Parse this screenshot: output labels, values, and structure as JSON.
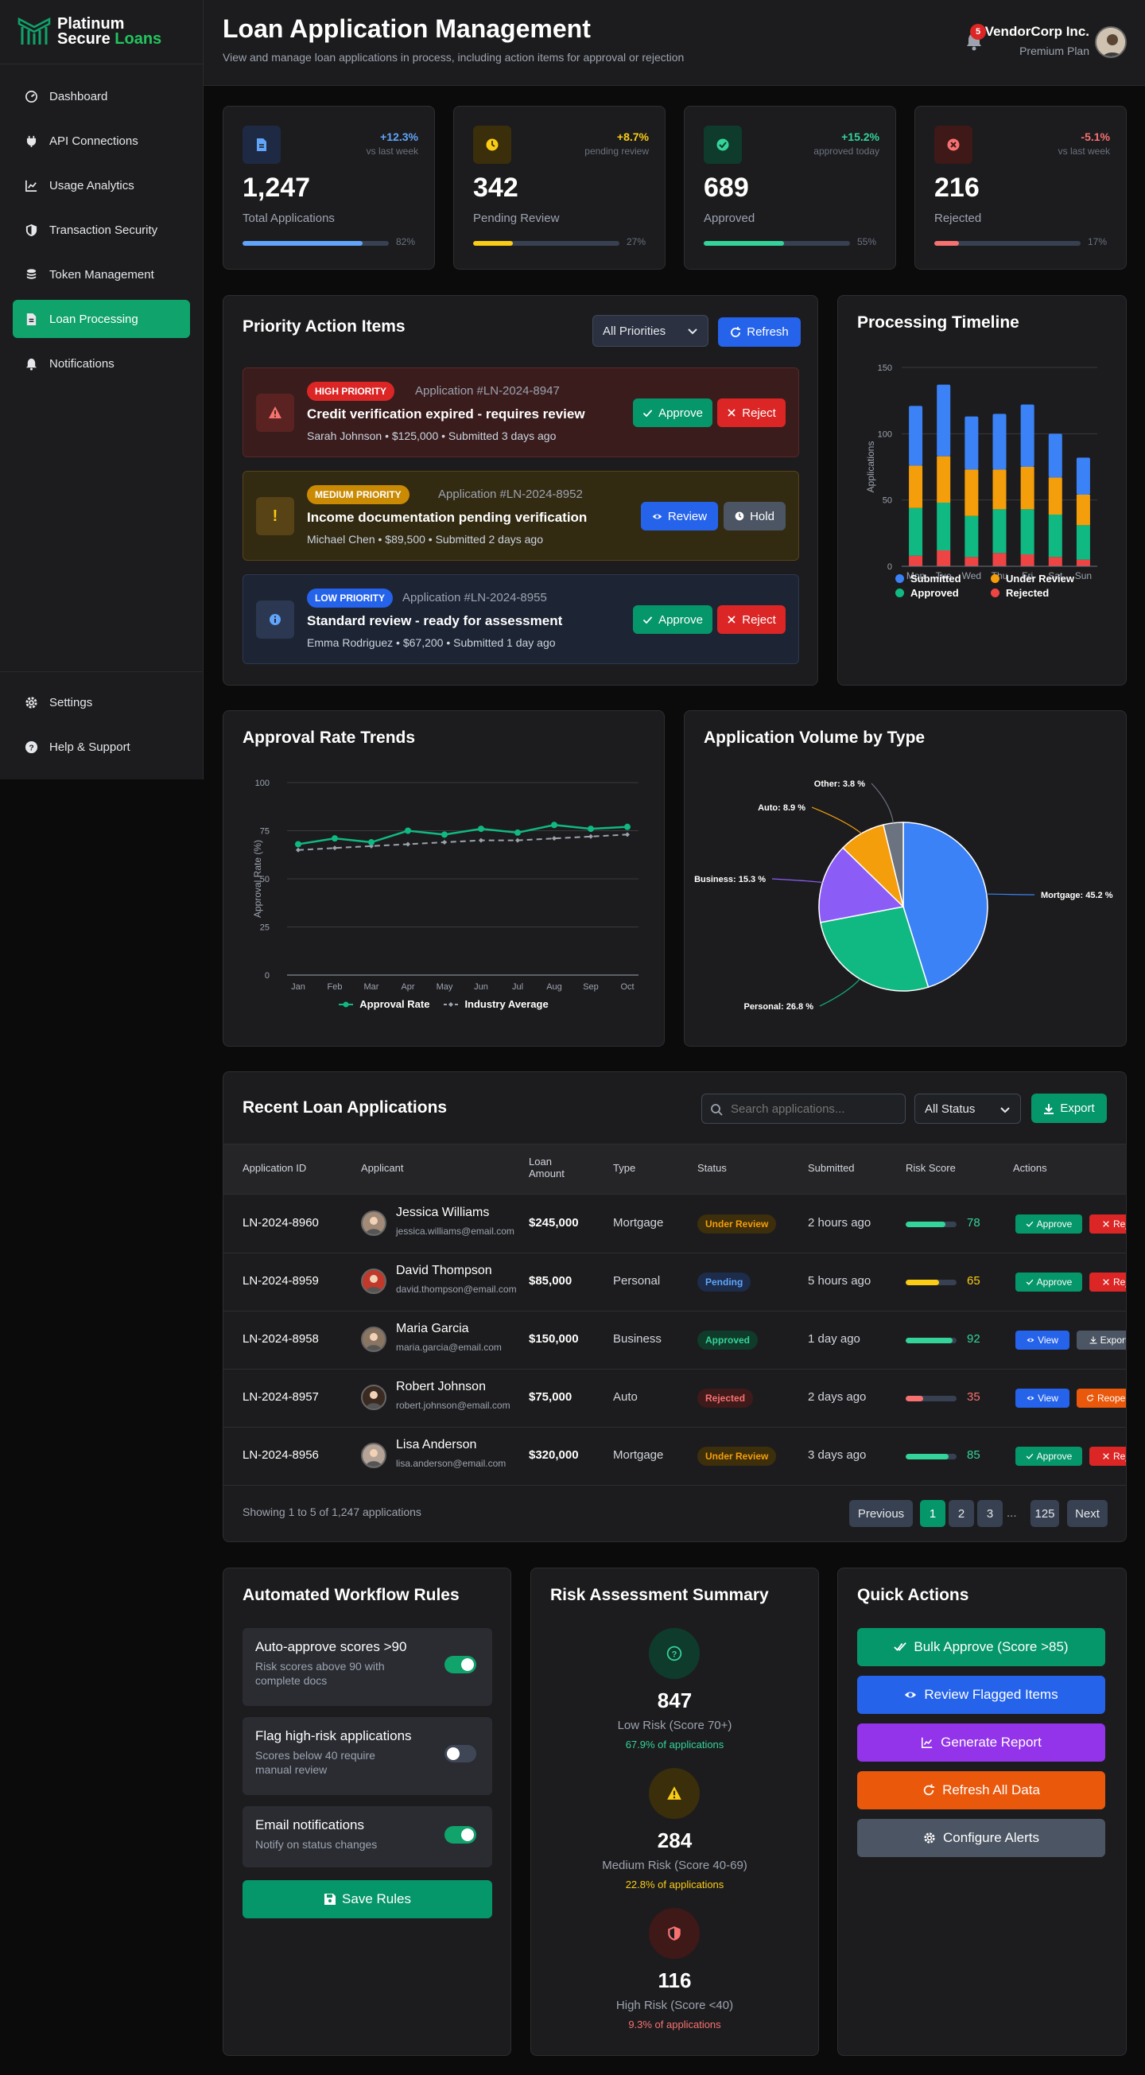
{
  "brand": {
    "line1": "Platinum",
    "line2a": "Secure",
    "line2b": "Loans"
  },
  "sidebar": {
    "items": [
      {
        "label": "Dashboard",
        "icon": "dashboard-icon"
      },
      {
        "label": "API Connections",
        "icon": "plug-icon"
      },
      {
        "label": "Usage Analytics",
        "icon": "chart-line-icon"
      },
      {
        "label": "Transaction Security",
        "icon": "shield-icon"
      },
      {
        "label": "Token Management",
        "icon": "coins-icon"
      },
      {
        "label": "Loan Processing",
        "icon": "file-icon",
        "active": true
      },
      {
        "label": "Notifications",
        "icon": "bell-icon"
      }
    ],
    "bottom": [
      {
        "label": "Settings",
        "icon": "gear-icon"
      },
      {
        "label": "Help & Support",
        "icon": "question-icon"
      }
    ]
  },
  "header": {
    "title": "Loan Application Management",
    "subtitle": "View and manage loan applications in process, including action items for approval or rejection",
    "notification_count": "5",
    "company": "VendorCorp Inc.",
    "plan": "Premium Plan"
  },
  "stats": [
    {
      "value": "1,247",
      "label": "Total Applications",
      "change": "+12.3%",
      "change_label": "vs last week",
      "progress": 82,
      "progress_text": "82%",
      "color": "#60a5fa",
      "icon": "file-icon"
    },
    {
      "value": "342",
      "label": "Pending Review",
      "change": "+8.7%",
      "change_label": "pending review",
      "progress": 27,
      "progress_text": "27%",
      "color": "#facc15",
      "icon": "clock-icon"
    },
    {
      "value": "689",
      "label": "Approved",
      "change": "+15.2%",
      "change_label": "approved today",
      "progress": 55,
      "progress_text": "55%",
      "color": "#34d399",
      "icon": "check-circle-icon"
    },
    {
      "value": "216",
      "label": "Rejected",
      "change": "-5.1%",
      "change_label": "vs last week",
      "progress": 17,
      "progress_text": "17%",
      "color": "#f87171",
      "icon": "x-circle-icon"
    }
  ],
  "priority": {
    "title": "Priority Action Items",
    "filter": "All Priorities",
    "refresh": "Refresh",
    "items": [
      {
        "badge": "HIGH PRIORITY",
        "app": "Application #LN-2024-8947",
        "title": "Credit verification expired - requires review",
        "meta": "Sarah Johnson • $125,000 • Submitted 3 days ago",
        "btn1": "Approve",
        "btn2": "Reject",
        "icon_glyph": "▲"
      },
      {
        "badge": "MEDIUM PRIORITY",
        "app": "Application #LN-2024-8952",
        "title": "Income documentation pending verification",
        "meta": "Michael Chen • $89,500 • Submitted 2 days ago",
        "btn1": "Review",
        "btn2": "Hold",
        "icon_glyph": "!"
      },
      {
        "badge": "LOW PRIORITY",
        "app": "Application #LN-2024-8955",
        "title": "Standard review - ready for assessment",
        "meta": "Emma Rodriguez • $67,200 • Submitted 1 day ago",
        "btn1": "Approve",
        "btn2": "Reject",
        "icon_glyph": "i"
      }
    ]
  },
  "chart_data": [
    {
      "type": "bar",
      "title": "Processing Timeline",
      "stacked": true,
      "categories": [
        "Mon",
        "Tue",
        "Wed",
        "Thu",
        "Fri",
        "Sat",
        "Sun"
      ],
      "ylabel": "Applications",
      "ylim": [
        0,
        150
      ],
      "yticks": [
        0,
        50,
        100,
        150
      ],
      "legend": "bottom",
      "series": [
        {
          "name": "Rejected",
          "color": "#ef4444",
          "values": [
            8,
            12,
            7,
            10,
            9,
            7,
            5
          ]
        },
        {
          "name": "Approved",
          "color": "#10b981",
          "values": [
            36,
            36,
            31,
            33,
            34,
            32,
            26
          ]
        },
        {
          "name": "Under Review",
          "color": "#f59e0b",
          "values": [
            32,
            35,
            35,
            30,
            32,
            28,
            23
          ]
        },
        {
          "name": "Submitted",
          "color": "#3b82f6",
          "values": [
            45,
            54,
            40,
            42,
            47,
            33,
            28
          ]
        }
      ]
    },
    {
      "type": "line",
      "title": "Approval Rate Trends",
      "categories": [
        "Jan",
        "Feb",
        "Mar",
        "Apr",
        "May",
        "Jun",
        "Jul",
        "Aug",
        "Sep",
        "Oct"
      ],
      "ylabel": "Approval Rate (%)",
      "ylim": [
        0,
        100
      ],
      "yticks": [
        0,
        25,
        50,
        75,
        100
      ],
      "legend": "bottom",
      "series": [
        {
          "name": "Approval Rate",
          "color": "#10b981",
          "values": [
            68,
            71,
            69,
            75,
            73,
            76,
            74,
            78,
            76,
            77
          ]
        },
        {
          "name": "Industry Average",
          "color": "#9ca3af",
          "dashed": true,
          "values": [
            65,
            66,
            67,
            68,
            69,
            70,
            70,
            71,
            72,
            73
          ]
        }
      ]
    },
    {
      "type": "pie",
      "title": "Application Volume by Type",
      "slices": [
        {
          "label": "Mortgage",
          "value": 45.2,
          "color": "#3b82f6"
        },
        {
          "label": "Personal",
          "value": 26.8,
          "color": "#10b981"
        },
        {
          "label": "Business",
          "value": 15.3,
          "color": "#8b5cf6"
        },
        {
          "label": "Auto",
          "value": 8.9,
          "color": "#f59e0b"
        },
        {
          "label": "Other",
          "value": 3.8,
          "color": "#6b7280"
        }
      ]
    }
  ],
  "table": {
    "title": "Recent Loan Applications",
    "search_placeholder": "Search applications...",
    "status_filter": "All Status",
    "export": "Export",
    "columns": [
      "Application ID",
      "Applicant",
      "Loan Amount",
      "Type",
      "Status",
      "Submitted",
      "Risk Score",
      "Actions"
    ],
    "rows": [
      {
        "id": "LN-2024-8960",
        "name": "Jessica Williams",
        "email": "jessica.williams@email.com",
        "amount": "$245,000",
        "type": "Mortgage",
        "status": "Under Review",
        "status_color": "#f59e0b",
        "status_bg": "#3d2e0c",
        "submitted": "2 hours ago",
        "risk": "78",
        "risk_color": "#34d399",
        "a1": "Approve",
        "a1c": "#059669",
        "a2": "Reject",
        "a2c": "#dc2626",
        "avatar": "#a18b78"
      },
      {
        "id": "LN-2024-8959",
        "name": "David Thompson",
        "email": "david.thompson@email.com",
        "amount": "$85,000",
        "type": "Personal",
        "status": "Pending",
        "status_color": "#60a5fa",
        "status_bg": "#1c2c4a",
        "submitted": "5 hours ago",
        "risk": "65",
        "risk_color": "#facc15",
        "a1": "Approve",
        "a1c": "#059669",
        "a2": "Reject",
        "a2c": "#dc2626",
        "avatar": "#c0392b"
      },
      {
        "id": "LN-2024-8958",
        "name": "Maria Garcia",
        "email": "maria.garcia@email.com",
        "amount": "$150,000",
        "type": "Business",
        "status": "Approved",
        "status_color": "#34d399",
        "status_bg": "#103a2a",
        "submitted": "1 day ago",
        "risk": "92",
        "risk_color": "#34d399",
        "a1": "View",
        "a1c": "#2563eb",
        "a2": "Export",
        "a2c": "#4b5563",
        "avatar": "#8a7462"
      },
      {
        "id": "LN-2024-8957",
        "name": "Robert Johnson",
        "email": "robert.johnson@email.com",
        "amount": "$75,000",
        "type": "Auto",
        "status": "Rejected",
        "status_color": "#f87171",
        "status_bg": "#3f1a1a",
        "submitted": "2 days ago",
        "risk": "35",
        "risk_color": "#f87171",
        "a1": "View",
        "a1c": "#2563eb",
        "a2": "Reopen",
        "a2c": "#ea580c",
        "avatar": "#3b2a22"
      },
      {
        "id": "LN-2024-8956",
        "name": "Lisa Anderson",
        "email": "lisa.anderson@email.com",
        "amount": "$320,000",
        "type": "Mortgage",
        "status": "Under Review",
        "status_color": "#f59e0b",
        "status_bg": "#3d2e0c",
        "submitted": "3 days ago",
        "risk": "85",
        "risk_color": "#34d399",
        "a1": "Approve",
        "a1c": "#059669",
        "a2": "Reject",
        "a2c": "#dc2626",
        "avatar": "#b5a397"
      }
    ],
    "footer": "Showing 1 to 5 of 1,247 applications",
    "pagination": {
      "prev": "Previous",
      "pages": [
        "1",
        "2",
        "3"
      ],
      "ellipsis": "...",
      "last": "125",
      "next": "Next"
    }
  },
  "workflow": {
    "title": "Automated Workflow Rules",
    "rules": [
      {
        "title": "Auto-approve scores >90",
        "desc": "Risk scores above 90 with complete docs",
        "on": true
      },
      {
        "title": "Flag high-risk applications",
        "desc": "Scores below 40 require manual review",
        "on": false
      },
      {
        "title": "Email notifications",
        "desc": "Notify on status changes",
        "on": true
      }
    ],
    "save": "Save Rules"
  },
  "risk": {
    "title": "Risk Assessment Summary",
    "items": [
      {
        "value": "847",
        "label": "Low Risk (Score 70+)",
        "pct": "67.9% of applications",
        "color": "#34d399",
        "bg": "#0f3b2c",
        "icon": "question-circle-icon"
      },
      {
        "value": "284",
        "label": "Medium Risk (Score 40-69)",
        "pct": "22.8% of applications",
        "color": "#facc15",
        "bg": "#3a2e0b",
        "icon": "warning-icon"
      },
      {
        "value": "116",
        "label": "High Risk (Score <40)",
        "pct": "9.3% of applications",
        "color": "#f87171",
        "bg": "#3f1818",
        "icon": "shield-icon"
      }
    ]
  },
  "quick": {
    "title": "Quick Actions",
    "actions": [
      {
        "label": "Bulk Approve (Score >85)",
        "color": "#059669",
        "icon": "check-double-icon"
      },
      {
        "label": "Review Flagged Items",
        "color": "#2563eb",
        "icon": "eye-icon"
      },
      {
        "label": "Generate Report",
        "color": "#9333ea",
        "icon": "chart-line-icon"
      },
      {
        "label": "Refresh All Data",
        "color": "#ea580c",
        "icon": "refresh-icon"
      },
      {
        "label": "Configure Alerts",
        "color": "#4b5563",
        "icon": "gear-icon"
      }
    ]
  }
}
